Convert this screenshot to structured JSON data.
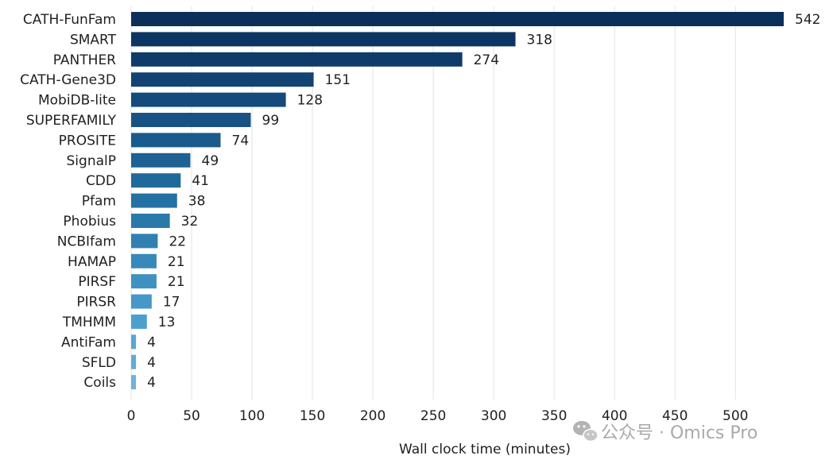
{
  "chart_data": {
    "type": "bar",
    "orientation": "horizontal",
    "title": "",
    "xlabel": "Wall clock time (minutes)",
    "ylabel": "",
    "xlim": [
      0,
      540
    ],
    "xticks": [
      0,
      50,
      100,
      150,
      200,
      250,
      300,
      350,
      400,
      450,
      500
    ],
    "grid": true,
    "categories": [
      "CATH-FunFam",
      "SMART",
      "PANTHER",
      "CATH-Gene3D",
      "MobiDB-lite",
      "SUPERFAMILY",
      "PROSITE",
      "SignalP",
      "CDD",
      "Pfam",
      "Phobius",
      "NCBIfam",
      "HAMAP",
      "PIRSF",
      "PIRSR",
      "TMHMM",
      "AntiFam",
      "SFLD",
      "Coils"
    ],
    "values": [
      542,
      318,
      274,
      151,
      128,
      99,
      74,
      49,
      41,
      38,
      32,
      22,
      21,
      21,
      17,
      13,
      4,
      4,
      4
    ],
    "colors": [
      "#0b2f59",
      "#0d3563",
      "#0f3b6b",
      "#124373",
      "#144a7c",
      "#175283",
      "#1a5a8c",
      "#1d6293",
      "#206a9b",
      "#2471a3",
      "#2979ab",
      "#3081b2",
      "#3789ba",
      "#3e91c0",
      "#4598c7",
      "#4da0cd",
      "#58a6d2",
      "#64abd6",
      "#70b1da"
    ]
  },
  "watermark": {
    "text": "公众号 · Omics Pro",
    "icon": "wechat-icon"
  }
}
